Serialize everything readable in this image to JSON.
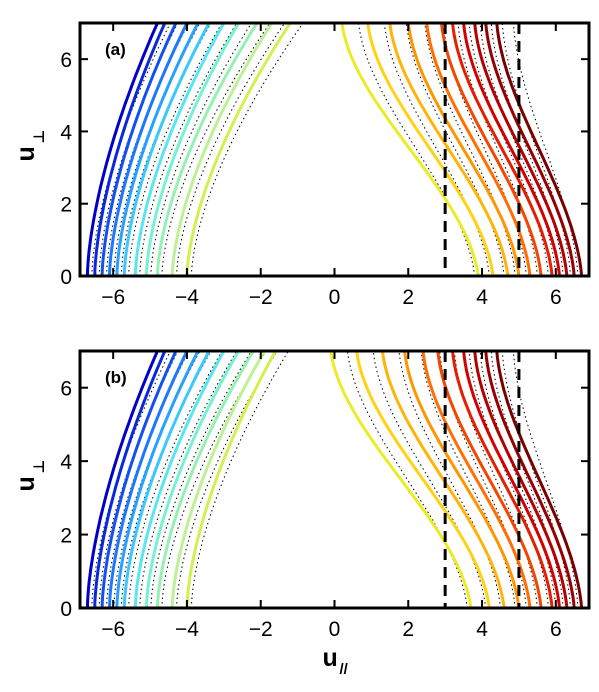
{
  "chart_data": [
    {
      "type": "line",
      "panel_label": "(a)",
      "xlim": [
        -6.9,
        6.9
      ],
      "ylim": [
        0,
        7
      ],
      "xticks": [
        -6,
        -4,
        -2,
        0,
        2,
        4,
        6
      ],
      "yticks": [
        0,
        2,
        4,
        6
      ],
      "xtick_labels": [
        "−6",
        "−4",
        "−2",
        "0",
        "2",
        "4",
        "6"
      ],
      "ytick_labels": [
        "0",
        "2",
        "4",
        "6"
      ],
      "ylabel": "u",
      "ylabel_sub": "⊥",
      "xlabel": "",
      "grid": false,
      "vlines": [
        3,
        5
      ],
      "left_contours_u_at_0": [
        -6.7,
        -6.5,
        -6.3,
        -6.1,
        -5.9,
        -5.7,
        -5.4,
        -5.1,
        -4.8,
        -4.4,
        -4.0
      ],
      "left_contours_u_at_7": [
        -4.8,
        -4.6,
        -4.3,
        -4.0,
        -3.7,
        -3.4,
        -3.0,
        -2.6,
        -2.1,
        -1.7,
        -1.2
      ],
      "right_contours_u_at_0": [
        3.9,
        4.3,
        4.7,
        5.0,
        5.3,
        5.6,
        5.9,
        6.1,
        6.3,
        6.5,
        6.7
      ],
      "right_contours_u_at_7": [
        0.2,
        0.9,
        1.5,
        2.0,
        2.5,
        2.9,
        3.2,
        3.5,
        3.8,
        4.1,
        4.4
      ],
      "contour_colors": [
        "#0000c8",
        "#0a28dc",
        "#1450f0",
        "#1e78ff",
        "#28a0ff",
        "#3cc8ff",
        "#5ae6f0",
        "#78f0d2",
        "#96f0b4",
        "#bef096",
        "#d2f050",
        "#ebeb28",
        "#ffd214",
        "#ffb40a",
        "#ff9600",
        "#ff6e00",
        "#f54600",
        "#e61e00",
        "#d20000",
        "#b40000",
        "#960000",
        "#780000"
      ]
    },
    {
      "type": "line",
      "panel_label": "(b)",
      "xlim": [
        -6.9,
        6.9
      ],
      "ylim": [
        0,
        7
      ],
      "xticks": [
        -6,
        -4,
        -2,
        0,
        2,
        4,
        6
      ],
      "yticks": [
        0,
        2,
        4,
        6
      ],
      "xtick_labels": [
        "−6",
        "−4",
        "−2",
        "0",
        "2",
        "4",
        "6"
      ],
      "ytick_labels": [
        "0",
        "2",
        "4",
        "6"
      ],
      "ylabel": "u",
      "ylabel_sub": "⊥",
      "xlabel": "u",
      "xlabel_sub": "//",
      "grid": false,
      "vlines": [
        3,
        5
      ],
      "left_contours_u_at_0": [
        -6.7,
        -6.5,
        -6.3,
        -6.1,
        -5.9,
        -5.7,
        -5.4,
        -5.1,
        -4.8,
        -4.4,
        -4.0
      ],
      "left_contours_u_at_7": [
        -4.8,
        -4.6,
        -4.3,
        -4.0,
        -3.7,
        -3.4,
        -3.0,
        -2.6,
        -2.2,
        -1.9,
        -1.6
      ],
      "right_contours_u_at_0": [
        3.7,
        4.2,
        4.6,
        5.0,
        5.3,
        5.6,
        5.9,
        6.1,
        6.3,
        6.5,
        6.7
      ],
      "right_contours_u_at_7": [
        -0.1,
        0.6,
        1.3,
        1.9,
        2.4,
        2.8,
        3.2,
        3.5,
        3.8,
        4.1,
        4.4
      ],
      "contour_colors": [
        "#0000c8",
        "#0a28dc",
        "#1450f0",
        "#1e78ff",
        "#28a0ff",
        "#3cc8ff",
        "#5ae6f0",
        "#78f0d2",
        "#96f0b4",
        "#bef096",
        "#d2f050",
        "#ebeb28",
        "#ffd214",
        "#ffb40a",
        "#ff9600",
        "#ff6e00",
        "#f54600",
        "#e61e00",
        "#d20000",
        "#b40000",
        "#960000",
        "#780000"
      ]
    }
  ]
}
